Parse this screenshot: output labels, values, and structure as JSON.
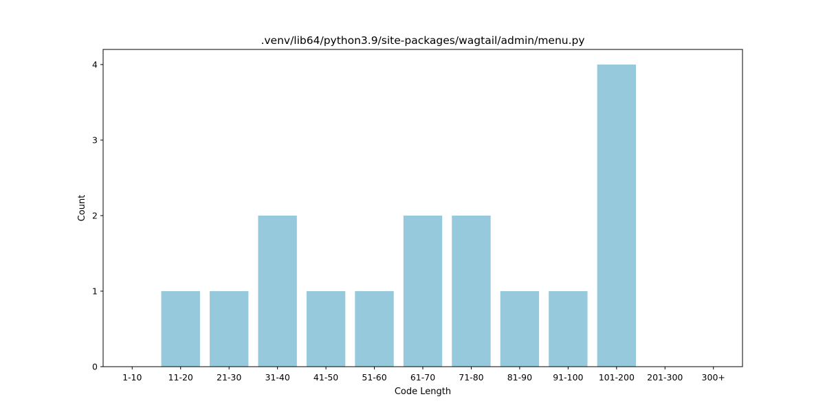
{
  "chart_data": {
    "type": "bar",
    "title": ".venv/lib64/python3.9/site-packages/wagtail/admin/menu.py",
    "xlabel": "Code Length",
    "ylabel": "Count",
    "categories": [
      "1-10",
      "11-20",
      "21-30",
      "31-40",
      "41-50",
      "51-60",
      "61-70",
      "71-80",
      "81-90",
      "91-100",
      "101-200",
      "201-300",
      "300+"
    ],
    "values": [
      0,
      1,
      1,
      2,
      1,
      1,
      2,
      2,
      1,
      1,
      4,
      0,
      0
    ],
    "ylim": [
      0,
      4.2
    ],
    "yticks": [
      0,
      1,
      2,
      3,
      4
    ],
    "bar_color": "#96c9dc",
    "grid": false,
    "legend": "none"
  }
}
